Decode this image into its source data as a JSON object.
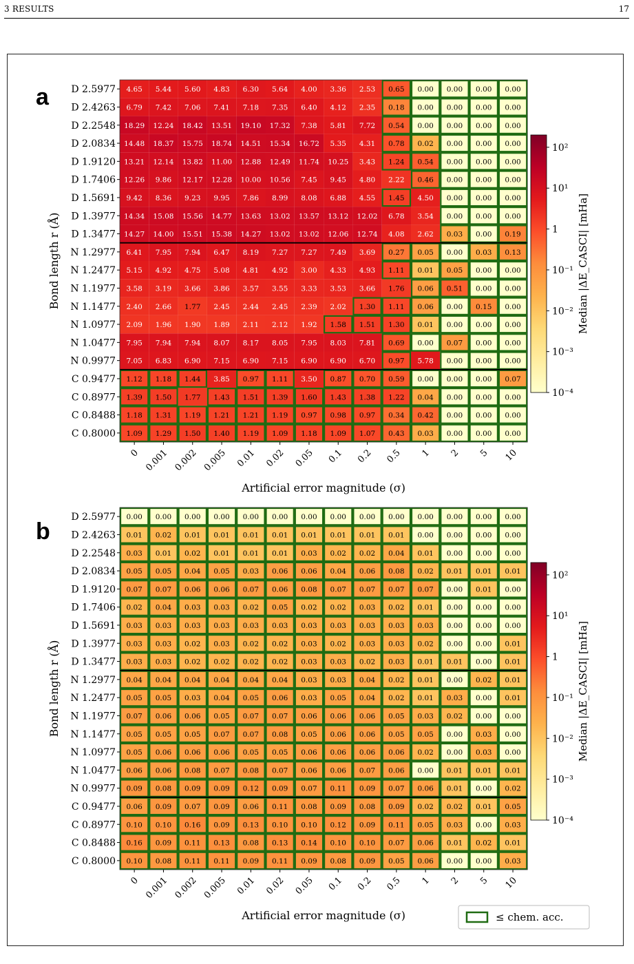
{
  "header": {
    "section": "3   RESULTS",
    "page_number": "17"
  },
  "caption_fragment": "",
  "chart_data": [
    {
      "type": "heatmap",
      "panel_label": "a",
      "xlabel": "Artificial error magnitude (σ)",
      "ylabel": "Bond length r (Å)",
      "colorbar_label": "Median |ΔE_CASCI| [mHa]",
      "colorbar_scale": "log",
      "colorbar_range": [
        0.0001,
        200
      ],
      "colorbar_ticks": [
        "10^2",
        "10^1",
        "1",
        "10^-1",
        "10^-2",
        "10^-3",
        "10^-4"
      ],
      "colormap": [
        "#ffffcc",
        "#ffeda0",
        "#fed976",
        "#feb24c",
        "#fd8d3c",
        "#fc4e2a",
        "#e31a1c",
        "#bd0026",
        "#800026"
      ],
      "x_categories": [
        "0",
        "0.001",
        "0.002",
        "0.005",
        "0.01",
        "0.02",
        "0.05",
        "0.1",
        "0.2",
        "0.5",
        "1",
        "2",
        "5",
        "10"
      ],
      "y_categories": [
        "D 2.5977",
        "D 2.4263",
        "D 2.2548",
        "D 2.0834",
        "D 1.9120",
        "D 1.7406",
        "D 1.5691",
        "D 1.3977",
        "D 1.3477",
        "N 1.2977",
        "N 1.2477",
        "N 1.1977",
        "N 1.1477",
        "N 1.0977",
        "N 1.0477",
        "N 0.9977",
        "C 0.9477",
        "C 0.8977",
        "C 0.8488",
        "C 0.8000"
      ],
      "group_separators_after_rows": [
        8,
        15
      ],
      "chemical_accuracy_threshold_mHa": 1.6,
      "values": [
        [
          4.65,
          5.44,
          5.6,
          4.83,
          6.3,
          5.64,
          4.0,
          3.36,
          2.53,
          0.65,
          0.0,
          0.0,
          0.0,
          0.0
        ],
        [
          6.79,
          7.42,
          7.06,
          7.41,
          7.18,
          7.35,
          6.4,
          4.12,
          2.35,
          0.18,
          0.0,
          0.0,
          0.0,
          0.0
        ],
        [
          18.29,
          12.24,
          18.42,
          13.51,
          19.1,
          17.32,
          7.38,
          5.81,
          7.72,
          0.54,
          0.0,
          0.0,
          0.0,
          0.0
        ],
        [
          14.48,
          18.37,
          15.75,
          18.74,
          14.51,
          15.34,
          16.72,
          5.35,
          4.31,
          0.78,
          0.02,
          0.0,
          0.0,
          0.0
        ],
        [
          13.21,
          12.14,
          13.82,
          11.0,
          12.88,
          12.49,
          11.74,
          10.25,
          3.43,
          1.24,
          0.54,
          0.0,
          0.0,
          0.0
        ],
        [
          12.26,
          9.86,
          12.17,
          12.28,
          10.0,
          10.56,
          7.45,
          9.45,
          4.8,
          2.22,
          0.46,
          0.0,
          0.0,
          0.0
        ],
        [
          9.42,
          8.36,
          9.23,
          9.95,
          7.86,
          8.99,
          8.08,
          6.88,
          4.55,
          1.45,
          4.5,
          0.0,
          0.0,
          0.0
        ],
        [
          14.34,
          15.08,
          15.56,
          14.77,
          13.63,
          13.02,
          13.57,
          13.12,
          12.02,
          6.78,
          3.54,
          0.0,
          0.0,
          0.0
        ],
        [
          14.27,
          14.0,
          15.51,
          15.38,
          14.27,
          13.02,
          13.02,
          12.06,
          12.74,
          4.08,
          2.62,
          0.03,
          0.0,
          0.19
        ],
        [
          6.41,
          7.95,
          7.94,
          6.47,
          8.19,
          7.27,
          7.27,
          7.49,
          3.69,
          0.27,
          0.05,
          0.0,
          0.03,
          0.13
        ],
        [
          5.15,
          4.92,
          4.75,
          5.08,
          4.81,
          4.92,
          3.0,
          4.33,
          4.93,
          1.11,
          0.01,
          0.05,
          0.0,
          0.0
        ],
        [
          3.58,
          3.19,
          3.66,
          3.86,
          3.57,
          3.55,
          3.33,
          3.53,
          3.66,
          1.76,
          0.06,
          0.51,
          0.0,
          0.0
        ],
        [
          2.4,
          2.66,
          1.77,
          2.45,
          2.44,
          2.45,
          2.39,
          2.02,
          1.3,
          1.11,
          0.06,
          0.0,
          0.15,
          0.0
        ],
        [
          2.09,
          1.96,
          1.9,
          1.89,
          2.11,
          2.12,
          1.92,
          1.58,
          1.51,
          1.3,
          0.01,
          0.0,
          0.0,
          0.0
        ],
        [
          7.95,
          7.94,
          7.94,
          8.07,
          8.17,
          8.05,
          7.95,
          8.03,
          7.81,
          0.69,
          0.0,
          0.07,
          0.0,
          0.0
        ],
        [
          7.05,
          6.83,
          6.9,
          7.15,
          6.9,
          7.15,
          6.9,
          6.9,
          6.7,
          0.97,
          5.78,
          0.0,
          0.0,
          0.0
        ],
        [
          1.12,
          1.18,
          1.44,
          3.85,
          0.97,
          1.11,
          3.5,
          0.87,
          0.7,
          0.59,
          0.0,
          0.0,
          0.0,
          0.07
        ],
        [
          1.39,
          1.5,
          1.77,
          1.43,
          1.51,
          1.39,
          1.6,
          1.43,
          1.38,
          1.22,
          0.04,
          0.0,
          0.0,
          0.0
        ],
        [
          1.18,
          1.31,
          1.19,
          1.21,
          1.21,
          1.19,
          0.97,
          0.98,
          0.97,
          0.34,
          0.42,
          0.0,
          0.0,
          0.0
        ],
        [
          1.09,
          1.29,
          1.5,
          1.4,
          1.19,
          1.09,
          1.18,
          1.09,
          1.07,
          0.43,
          0.03,
          0.0,
          0.0,
          0.0
        ]
      ]
    },
    {
      "type": "heatmap",
      "panel_label": "b",
      "xlabel": "Artificial error magnitude (σ)",
      "ylabel": "Bond length r (Å)",
      "colorbar_label": "Median |ΔE_CASCI| [mHa]",
      "colorbar_scale": "log",
      "colorbar_range": [
        0.0001,
        200
      ],
      "colorbar_ticks": [
        "10^2",
        "10^1",
        "1",
        "10^-1",
        "10^-2",
        "10^-3",
        "10^-4"
      ],
      "colormap": [
        "#ffffcc",
        "#ffeda0",
        "#fed976",
        "#feb24c",
        "#fd8d3c",
        "#fc4e2a",
        "#e31a1c",
        "#bd0026",
        "#800026"
      ],
      "x_categories": [
        "0",
        "0.001",
        "0.002",
        "0.005",
        "0.01",
        "0.02",
        "0.05",
        "0.1",
        "0.2",
        "0.5",
        "1",
        "2",
        "5",
        "10"
      ],
      "y_categories": [
        "D 2.5977",
        "D 2.4263",
        "D 2.2548",
        "D 2.0834",
        "D 1.9120",
        "D 1.7406",
        "D 1.5691",
        "D 1.3977",
        "D 1.3477",
        "N 1.2977",
        "N 1.2477",
        "N 1.1977",
        "N 1.1477",
        "N 1.0977",
        "N 1.0477",
        "N 0.9977",
        "C 0.9477",
        "C 0.8977",
        "C 0.8488",
        "C 0.8000"
      ],
      "group_separators_after_rows": [
        8,
        15
      ],
      "chemical_accuracy_threshold_mHa": 1.6,
      "legend": {
        "label": "≤ chem. acc.",
        "placement": "bottom-right"
      },
      "values": [
        [
          0.0,
          0.0,
          0.0,
          0.0,
          0.0,
          0.0,
          0.0,
          0.0,
          0.0,
          0.0,
          0.0,
          0.0,
          0.0,
          0.0
        ],
        [
          0.01,
          0.02,
          0.01,
          0.01,
          0.01,
          0.01,
          0.01,
          0.01,
          0.01,
          0.01,
          0.0,
          0.0,
          0.0,
          0.0
        ],
        [
          0.03,
          0.01,
          0.02,
          0.01,
          0.01,
          0.01,
          0.03,
          0.02,
          0.02,
          0.04,
          0.01,
          0.0,
          0.0,
          0.0
        ],
        [
          0.05,
          0.05,
          0.04,
          0.05,
          0.03,
          0.06,
          0.06,
          0.04,
          0.06,
          0.08,
          0.02,
          0.01,
          0.01,
          0.01
        ],
        [
          0.07,
          0.07,
          0.06,
          0.06,
          0.07,
          0.06,
          0.08,
          0.07,
          0.07,
          0.07,
          0.07,
          0.0,
          0.01,
          0.0
        ],
        [
          0.02,
          0.04,
          0.03,
          0.03,
          0.02,
          0.05,
          0.02,
          0.02,
          0.03,
          0.02,
          0.01,
          0.0,
          0.0,
          0.0
        ],
        [
          0.03,
          0.03,
          0.03,
          0.03,
          0.03,
          0.03,
          0.03,
          0.03,
          0.03,
          0.03,
          0.03,
          0.0,
          0.0,
          0.0
        ],
        [
          0.03,
          0.03,
          0.02,
          0.03,
          0.02,
          0.02,
          0.03,
          0.02,
          0.03,
          0.03,
          0.02,
          0.0,
          0.0,
          0.01
        ],
        [
          0.03,
          0.03,
          0.02,
          0.02,
          0.02,
          0.02,
          0.03,
          0.03,
          0.02,
          0.03,
          0.01,
          0.01,
          0.0,
          0.01
        ],
        [
          0.04,
          0.04,
          0.04,
          0.04,
          0.04,
          0.04,
          0.03,
          0.03,
          0.04,
          0.02,
          0.01,
          0.0,
          0.02,
          0.01
        ],
        [
          0.05,
          0.05,
          0.03,
          0.04,
          0.05,
          0.06,
          0.03,
          0.05,
          0.04,
          0.02,
          0.01,
          0.03,
          0.0,
          0.01
        ],
        [
          0.07,
          0.06,
          0.06,
          0.05,
          0.07,
          0.07,
          0.06,
          0.06,
          0.06,
          0.05,
          0.03,
          0.02,
          0.0,
          0.0
        ],
        [
          0.05,
          0.05,
          0.05,
          0.07,
          0.07,
          0.08,
          0.05,
          0.06,
          0.06,
          0.05,
          0.05,
          0.0,
          0.03,
          0.0
        ],
        [
          0.05,
          0.06,
          0.06,
          0.06,
          0.05,
          0.05,
          0.06,
          0.06,
          0.06,
          0.06,
          0.02,
          0.0,
          0.03,
          0.0
        ],
        [
          0.06,
          0.06,
          0.08,
          0.07,
          0.08,
          0.07,
          0.06,
          0.06,
          0.07,
          0.06,
          0.0,
          0.01,
          0.01,
          0.01
        ],
        [
          0.09,
          0.08,
          0.09,
          0.09,
          0.12,
          0.09,
          0.07,
          0.11,
          0.09,
          0.07,
          0.06,
          0.01,
          0.0,
          0.02
        ],
        [
          0.06,
          0.09,
          0.07,
          0.09,
          0.06,
          0.11,
          0.08,
          0.09,
          0.08,
          0.09,
          0.02,
          0.02,
          0.01,
          0.05
        ],
        [
          0.1,
          0.1,
          0.16,
          0.09,
          0.13,
          0.1,
          0.1,
          0.12,
          0.09,
          0.11,
          0.05,
          0.03,
          0.0,
          0.03
        ],
        [
          0.16,
          0.09,
          0.11,
          0.13,
          0.08,
          0.13,
          0.14,
          0.1,
          0.1,
          0.07,
          0.06,
          0.01,
          0.02,
          0.01
        ],
        [
          0.1,
          0.08,
          0.11,
          0.11,
          0.09,
          0.11,
          0.09,
          0.08,
          0.09,
          0.05,
          0.06,
          0.0,
          0.0,
          0.03
        ]
      ]
    }
  ]
}
